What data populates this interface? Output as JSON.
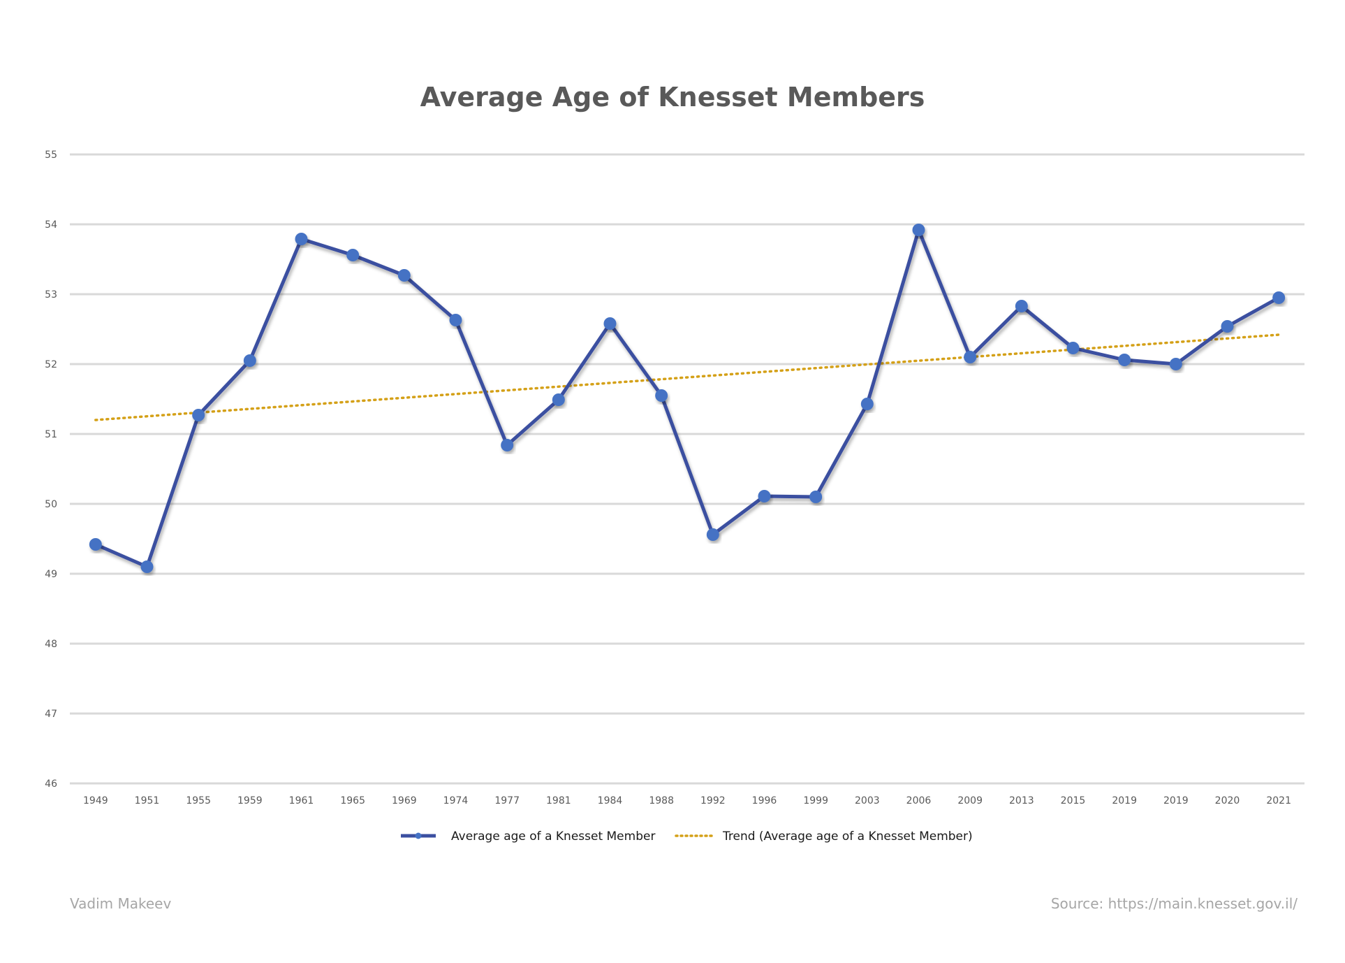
{
  "colors": {
    "series": "#3b4fa0",
    "marker": "#4472c4",
    "trend": "#d4a017",
    "grid": "#d9d9d9",
    "text": "#595959",
    "footer": "#a6a6a6"
  },
  "footer": {
    "author": "Vadim Makeev",
    "source": "Source: https://main.knesset.gov.il/"
  },
  "chart_data": {
    "type": "line",
    "title": "Average Age of Knesset Members",
    "xlabel": "",
    "ylabel": "",
    "ylim": [
      46,
      55
    ],
    "yticks": [
      46,
      47,
      48,
      49,
      50,
      51,
      52,
      53,
      54,
      55
    ],
    "grid": true,
    "legend_position": "bottom",
    "categories": [
      "1949",
      "1951",
      "1955",
      "1959",
      "1961",
      "1965",
      "1969",
      "1974",
      "1977",
      "1981",
      "1984",
      "1988",
      "1992",
      "1996",
      "1999",
      "2003",
      "2006",
      "2009",
      "2013",
      "2015",
      "2019",
      "2019",
      "2020",
      "2021"
    ],
    "series": [
      {
        "name": "Average age of a Knesset Member",
        "values": [
          49.42,
          49.1,
          51.27,
          52.05,
          53.79,
          53.56,
          53.27,
          52.63,
          50.84,
          51.49,
          52.58,
          51.55,
          49.56,
          50.11,
          50.1,
          51.43,
          53.92,
          52.1,
          52.83,
          52.23,
          52.06,
          52.0,
          52.54,
          52.95
        ]
      }
    ],
    "trendline": {
      "name": "Trend (Average age of a Knesset Member)",
      "style": "dotted",
      "start": 51.2,
      "end": 52.42
    }
  }
}
